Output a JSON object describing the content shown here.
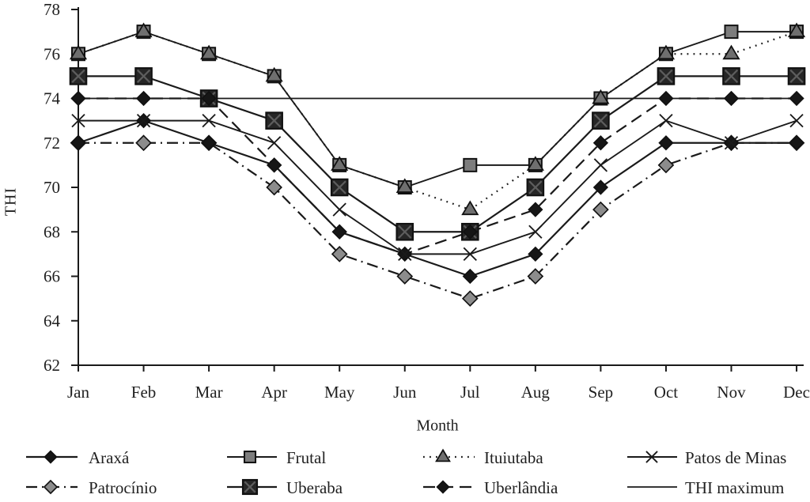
{
  "chart_data": {
    "type": "line",
    "title": "",
    "xlabel": "Month",
    "ylabel": "THI",
    "ylim": [
      62,
      78
    ],
    "yticks": [
      62,
      64,
      66,
      68,
      70,
      72,
      74,
      76,
      78
    ],
    "categories": [
      "Jan",
      "Feb",
      "Mar",
      "Apr",
      "May",
      "Jun",
      "Jul",
      "Aug",
      "Sep",
      "Oct",
      "Nov",
      "Dec"
    ],
    "grid": false,
    "legend_position": "bottom",
    "series": [
      {
        "name": "Araxá",
        "slug": "araxa",
        "values": [
          72,
          73,
          72,
          71,
          68,
          67,
          66,
          67,
          70,
          72,
          72,
          72
        ],
        "line": "solid",
        "marker": "diamond_black"
      },
      {
        "name": "Frutal",
        "slug": "frutal",
        "values": [
          76,
          77,
          76,
          75,
          71,
          70,
          71,
          71,
          74,
          76,
          77,
          77
        ],
        "line": "solid",
        "marker": "square_gray"
      },
      {
        "name": "Ituiutaba",
        "slug": "ituiutaba",
        "values": [
          76,
          77,
          76,
          75,
          71,
          70,
          69,
          71,
          74,
          76,
          76,
          77
        ],
        "line": "dotted",
        "marker": "triangle_gray"
      },
      {
        "name": "Patos de Minas",
        "slug": "patos-de-minas",
        "values": [
          73,
          73,
          73,
          72,
          69,
          67,
          67,
          68,
          71,
          73,
          72,
          73
        ],
        "line": "solid",
        "marker": "x"
      },
      {
        "name": "Patrocínio",
        "slug": "patrocinio",
        "values": [
          72,
          72,
          72,
          70,
          67,
          66,
          65,
          66,
          69,
          71,
          72,
          72
        ],
        "line": "dashdot",
        "marker": "diamond_gray"
      },
      {
        "name": "Uberaba",
        "slug": "uberaba",
        "values": [
          75,
          75,
          74,
          73,
          70,
          68,
          68,
          70,
          73,
          75,
          75,
          75
        ],
        "line": "solid",
        "marker": "square_dark"
      },
      {
        "name": "Uberlândia",
        "slug": "uberlandia",
        "values": [
          74,
          74,
          74,
          71,
          68,
          67,
          68,
          69,
          72,
          74,
          74,
          74
        ],
        "line": "dashed",
        "marker": "diamond_black"
      },
      {
        "name": "THI maximum",
        "slug": "thi-maximum",
        "values": [
          74,
          74,
          74,
          74,
          74,
          74,
          74,
          74,
          74,
          74,
          74,
          74
        ],
        "line": "solid",
        "marker": "none"
      }
    ],
    "legend_rows": [
      [
        "Araxá",
        "Frutal",
        "Ituiutaba",
        "Patos de Minas"
      ],
      [
        "Patrocínio",
        "Uberaba",
        "Uberlândia",
        "THI maximum"
      ]
    ]
  },
  "colors": {
    "ink": "#1a1a1a",
    "text": "#1f1f1f",
    "square_gray_fill": "#7d7d7d",
    "square_dark_fill": "#262626",
    "square_dark_cross": "#5d5d5d",
    "triangle_fill": "#6f6f6f",
    "diamond_gray_fill": "#8c8c8c",
    "diamond_black_fill": "#161616"
  }
}
